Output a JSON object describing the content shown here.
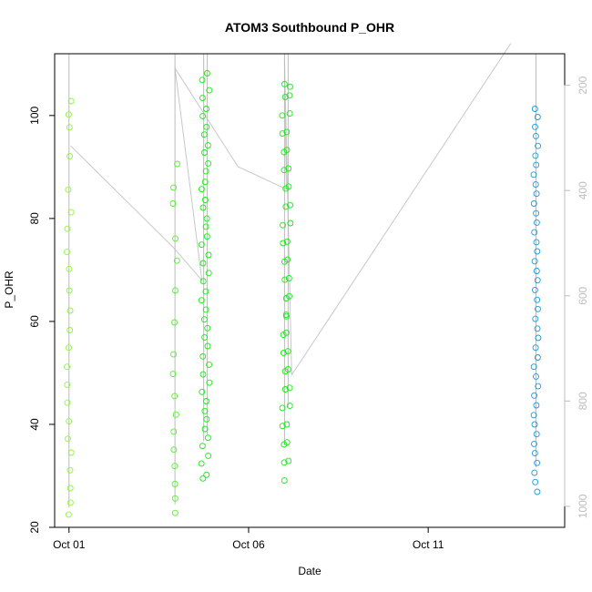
{
  "chart_data": {
    "type": "scatter",
    "title": "ATOM3 Southbound P_OHR",
    "xlabel": "Date",
    "ylabel": "P_OHR",
    "x_ticks": [
      "Oct 01",
      "Oct 06",
      "Oct 11"
    ],
    "y_ticks": [
      20,
      40,
      60,
      80,
      100
    ],
    "right_axis_ticks": [
      200,
      400,
      600,
      800,
      1000
    ],
    "xlim_days": [
      0.6,
      14.8
    ],
    "ylim": [
      20,
      112
    ],
    "right_axis_range": [
      140,
      1040
    ],
    "right_axis_reversed": true,
    "grid": false,
    "legend": "none",
    "series": [
      {
        "color": "#8ef63a",
        "profiles": [
          {
            "day": 1.0,
            "points": [
              [
                22.5,
                1002
              ],
              [
                24.8,
                958
              ],
              [
                27.6,
                905
              ],
              [
                31.1,
                839
              ],
              [
                34.5,
                775
              ],
              [
                37.2,
                724
              ],
              [
                40.6,
                660
              ],
              [
                44.2,
                592
              ],
              [
                47.7,
                526
              ],
              [
                51.2,
                460
              ],
              [
                54.9,
                390
              ],
              [
                58.3,
                326
              ],
              [
                62.1,
                254
              ],
              [
                66.0,
                181
              ],
              [
                70.2,
                101
              ],
              [
                73.5,
                39
              ],
              [
                78.0,
                -46
              ],
              [
                81.2,
                -106
              ],
              [
                85.6,
                -189
              ],
              [
                92.1,
                -312
              ],
              [
                97.7,
                -417
              ],
              [
                100.2,
                -464
              ],
              [
                102.8,
                -513
              ]
            ]
          }
        ]
      },
      {
        "color": "#52f22e",
        "profiles": [
          {
            "day": 3.95,
            "points": [
              [
                22.8,
                996
              ],
              [
                25.6,
                943
              ],
              [
                28.4,
                890
              ],
              [
                31.9,
                824
              ],
              [
                35.1,
                764
              ],
              [
                38.6,
                698
              ],
              [
                41.9,
                635
              ],
              [
                45.5,
                567
              ],
              [
                49.8,
                486
              ],
              [
                53.6,
                415
              ],
              [
                59.8,
                298
              ],
              [
                66.0,
                181
              ],
              [
                71.8,
                72
              ],
              [
                76.1,
                -9
              ],
              [
                82.9,
                -137
              ],
              [
                86.0,
                -196
              ],
              [
                90.6,
                -282
              ]
            ]
          }
        ]
      },
      {
        "color": "#14ec14",
        "profiles": [
          {
            "day": 4.75,
            "points": [
              [
                29.5,
                876
              ],
              [
                32.4,
                821
              ],
              [
                35.8,
                757
              ],
              [
                39.1,
                695
              ],
              [
                42.6,
                629
              ],
              [
                46.3,
                559
              ],
              [
                49.7,
                495
              ],
              [
                53.2,
                429
              ],
              [
                56.9,
                359
              ],
              [
                60.4,
                293
              ],
              [
                64.1,
                224
              ],
              [
                67.8,
                154
              ],
              [
                71.3,
                88
              ],
              [
                74.9,
                20
              ],
              [
                78.4,
                -46
              ],
              [
                82.1,
                -116
              ],
              [
                85.7,
                -183
              ],
              [
                89.2,
                -249
              ],
              [
                92.8,
                -317
              ],
              [
                96.3,
                -383
              ],
              [
                99.9,
                -451
              ],
              [
                103.4,
                -517
              ],
              [
                106.9,
                -583
              ]
            ]
          },
          {
            "day": 4.85,
            "points": [
              [
                30.2,
                863
              ],
              [
                33.9,
                793
              ],
              [
                37.4,
                727
              ],
              [
                41.0,
                659
              ],
              [
                44.5,
                593
              ],
              [
                48.1,
                525
              ],
              [
                51.6,
                459
              ],
              [
                55.2,
                391
              ],
              [
                58.7,
                325
              ],
              [
                62.3,
                257
              ],
              [
                65.8,
                191
              ],
              [
                69.4,
                123
              ],
              [
                72.9,
                57
              ],
              [
                76.5,
                -11
              ],
              [
                80.0,
                -77
              ],
              [
                83.6,
                -145
              ],
              [
                87.1,
                -211
              ],
              [
                90.7,
                -279
              ],
              [
                94.2,
                -345
              ],
              [
                97.8,
                -413
              ],
              [
                101.3,
                -479
              ],
              [
                104.9,
                -547
              ],
              [
                108.2,
                -609
              ]
            ]
          },
          {
            "day": 7.0,
            "points": [
              [
                29.1,
                884
              ],
              [
                32.6,
                818
              ],
              [
                36.1,
                752
              ],
              [
                39.7,
                684
              ],
              [
                43.2,
                618
              ],
              [
                46.8,
                550
              ],
              [
                50.3,
                484
              ],
              [
                53.9,
                416
              ],
              [
                57.4,
                350
              ],
              [
                61.0,
                282
              ],
              [
                64.5,
                216
              ],
              [
                68.1,
                148
              ],
              [
                71.6,
                82
              ],
              [
                75.2,
                14
              ],
              [
                78.7,
                -52
              ],
              [
                82.3,
                -120
              ],
              [
                85.8,
                -186
              ],
              [
                89.4,
                -254
              ],
              [
                92.9,
                -320
              ],
              [
                96.5,
                -388
              ],
              [
                100.0,
                -454
              ],
              [
                103.6,
                -522
              ],
              [
                106.1,
                -569
              ]
            ]
          },
          {
            "day": 7.1,
            "points": [
              [
                32.9,
                812
              ],
              [
                36.5,
                744
              ],
              [
                40.0,
                678
              ],
              [
                43.6,
                610
              ],
              [
                47.1,
                544
              ],
              [
                50.7,
                476
              ],
              [
                54.2,
                410
              ],
              [
                57.8,
                342
              ],
              [
                61.3,
                276
              ],
              [
                64.9,
                208
              ],
              [
                68.4,
                142
              ],
              [
                72.0,
                74
              ],
              [
                75.5,
                8
              ],
              [
                79.1,
                -60
              ],
              [
                82.6,
                -126
              ],
              [
                86.2,
                -194
              ],
              [
                89.7,
                -260
              ],
              [
                93.3,
                -328
              ],
              [
                96.8,
                -394
              ],
              [
                100.4,
                -462
              ],
              [
                103.9,
                -528
              ],
              [
                105.6,
                -560
              ]
            ]
          }
        ]
      },
      {
        "color": "#1899df",
        "profiles": [
          {
            "day": 14.0,
            "points": [
              [
                26.9,
                926
              ],
              [
                28.8,
                890
              ],
              [
                30.6,
                856
              ],
              [
                32.5,
                820
              ],
              [
                34.4,
                785
              ],
              [
                36.2,
                751
              ],
              [
                38.1,
                715
              ],
              [
                40.0,
                679
              ],
              [
                41.8,
                645
              ],
              [
                43.7,
                610
              ],
              [
                45.6,
                574
              ],
              [
                47.4,
                540
              ],
              [
                49.3,
                504
              ],
              [
                51.2,
                469
              ],
              [
                53.0,
                435
              ],
              [
                54.9,
                399
              ],
              [
                56.8,
                363
              ],
              [
                58.6,
                329
              ],
              [
                60.5,
                294
              ],
              [
                62.4,
                258
              ],
              [
                64.2,
                224
              ],
              [
                66.1,
                188
              ],
              [
                68.0,
                153
              ],
              [
                69.8,
                119
              ],
              [
                71.7,
                83
              ],
              [
                73.6,
                47
              ],
              [
                75.4,
                13
              ],
              [
                77.3,
                -22
              ],
              [
                79.2,
                -58
              ],
              [
                81.0,
                -92
              ],
              [
                82.9,
                -128
              ],
              [
                84.8,
                -163
              ],
              [
                86.6,
                -197
              ],
              [
                88.5,
                -233
              ],
              [
                90.4,
                -269
              ],
              [
                92.2,
                -303
              ],
              [
                94.1,
                -338
              ],
              [
                96.0,
                -374
              ],
              [
                97.8,
                -408
              ],
              [
                99.7,
                -444
              ],
              [
                101.3,
                -474
              ]
            ]
          }
        ]
      }
    ],
    "trace_polyline": [
      [
        1.05,
        94.1
      ],
      [
        3.9,
        74.4
      ],
      [
        4.7,
        68.0
      ],
      [
        3.95,
        109.2
      ],
      [
        5.7,
        90.1
      ],
      [
        7.05,
        85.7
      ],
      [
        7.0,
        110.9
      ],
      [
        7.2,
        49.6
      ],
      [
        13.3,
        114.0
      ]
    ]
  }
}
